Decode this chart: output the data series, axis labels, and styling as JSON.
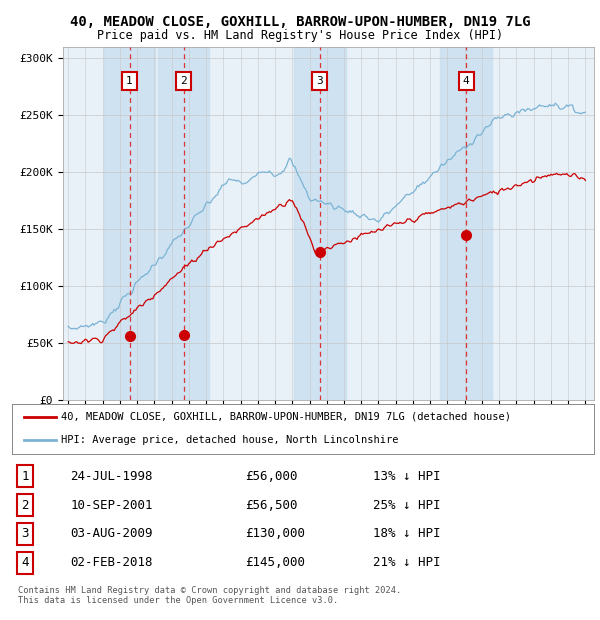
{
  "title": "40, MEADOW CLOSE, GOXHILL, BARROW-UPON-HUMBER, DN19 7LG",
  "subtitle": "Price paid vs. HM Land Registry's House Price Index (HPI)",
  "ylim": [
    0,
    310000
  ],
  "yticks": [
    0,
    50000,
    100000,
    150000,
    200000,
    250000,
    300000
  ],
  "ytick_labels": [
    "£0",
    "£50K",
    "£100K",
    "£150K",
    "£200K",
    "£250K",
    "£300K"
  ],
  "hpi_color": "#7ab3d4",
  "price_color": "#cc0000",
  "bg_color": "#ffffff",
  "plot_bg_color": "#e8f0f8",
  "grid_color": "#c8c8c8",
  "transactions": [
    {
      "date_num": 1998.56,
      "price": 56000,
      "label": "1"
    },
    {
      "date_num": 2001.69,
      "price": 56500,
      "label": "2"
    },
    {
      "date_num": 2009.59,
      "price": 130000,
      "label": "3"
    },
    {
      "date_num": 2018.09,
      "price": 145000,
      "label": "4"
    }
  ],
  "legend_line1": "40, MEADOW CLOSE, GOXHILL, BARROW-UPON-HUMBER, DN19 7LG (detached house)",
  "legend_line2": "HPI: Average price, detached house, North Lincolnshire",
  "table_rows": [
    [
      "1",
      "24-JUL-1998",
      "£56,000",
      "13% ↓ HPI"
    ],
    [
      "2",
      "10-SEP-2001",
      "£56,500",
      "25% ↓ HPI"
    ],
    [
      "3",
      "03-AUG-2009",
      "£130,000",
      "18% ↓ HPI"
    ],
    [
      "4",
      "02-FEB-2018",
      "£145,000",
      "21% ↓ HPI"
    ]
  ],
  "footnote": "Contains HM Land Registry data © Crown copyright and database right 2024.\nThis data is licensed under the Open Government Licence v3.0.",
  "dashed_line_color": "#dd2222",
  "highlight_band_color": "#c8dff0"
}
